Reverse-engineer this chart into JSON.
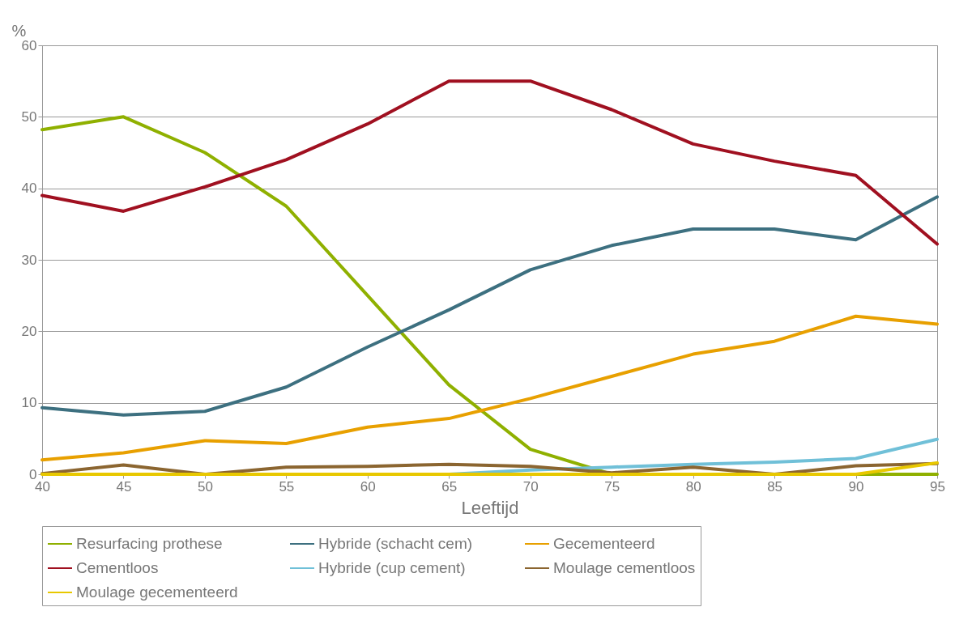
{
  "chart_data": {
    "type": "line",
    "xlabel": "Leeftijd",
    "ylabel": "%",
    "x": [
      40,
      45,
      50,
      55,
      60,
      65,
      70,
      75,
      80,
      85,
      90,
      95
    ],
    "xlim": [
      40,
      95
    ],
    "xticks": [
      40,
      45,
      50,
      55,
      60,
      65,
      70,
      75,
      80,
      85,
      90,
      95
    ],
    "ylim": [
      0,
      60
    ],
    "yticks": [
      0,
      10,
      20,
      30,
      40,
      50,
      60
    ],
    "grid": "y",
    "legend": "bottom",
    "marker": "none",
    "line_style": "solid",
    "series": [
      {
        "name": "Resurfacing prothese",
        "color": "#8fb000",
        "values": [
          48.2,
          50,
          45,
          37.5,
          25,
          12.5,
          3.5,
          0,
          0,
          0,
          0,
          0
        ]
      },
      {
        "name": "Hybride (schacht cem)",
        "color": "#3d7080",
        "values": [
          9.3,
          8.3,
          8.8,
          12.2,
          17.8,
          23,
          28.6,
          32,
          34.3,
          34.3,
          32.8,
          38.8
        ]
      },
      {
        "name": "Gecementeerd",
        "color": "#e8a000",
        "values": [
          2,
          3,
          4.7,
          4.3,
          6.6,
          7.8,
          10.6,
          13.7,
          16.8,
          18.6,
          22.1,
          21
        ]
      },
      {
        "name": "Cementloos",
        "color": "#a01020",
        "values": [
          39,
          36.8,
          40.2,
          44,
          49,
          55,
          55,
          51,
          46.2,
          43.8,
          41.8,
          32.2
        ]
      },
      {
        "name": "Hybride (cup cement)",
        "color": "#70c0d8",
        "values": [
          null,
          null,
          null,
          null,
          null,
          0,
          0.6,
          1,
          1.4,
          1.7,
          2.2,
          4.9
        ]
      },
      {
        "name": "Moulage cementloos",
        "color": "#8b6530",
        "values": [
          0.1,
          1.3,
          0,
          1,
          1.1,
          1.4,
          1.1,
          0.2,
          1,
          0,
          1.2,
          1.5
        ]
      },
      {
        "name": "Moulage gecementeerd",
        "color": "#e8c800",
        "values": [
          0,
          0,
          0,
          0,
          0,
          0,
          0,
          0,
          0,
          0,
          0,
          1.6
        ]
      }
    ]
  }
}
